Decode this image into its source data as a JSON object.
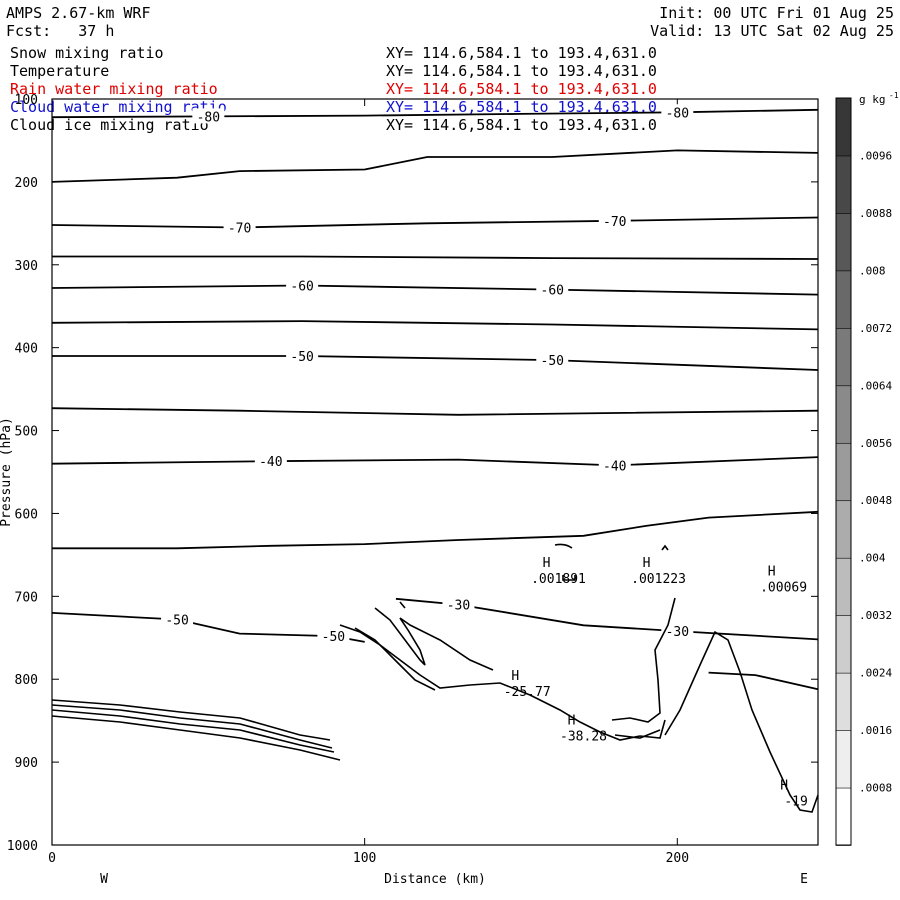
{
  "header": {
    "model": "AMPS 2.67-km WRF",
    "forecast": "Fcst:   37 h",
    "init": "Init: 00 UTC Fri 01 Aug 25",
    "valid": "Valid: 13 UTC Sat 02 Aug 25"
  },
  "fields": [
    {
      "name": "Snow mixing ratio",
      "range": "XY= 114.6,584.1 to 193.4,631.0",
      "color": "#000000"
    },
    {
      "name": "Temperature",
      "range": "XY= 114.6,584.1 to 193.4,631.0",
      "color": "#000000"
    },
    {
      "name": "Rain water mixing ratio",
      "range": "XY= 114.6,584.1 to 193.4,631.0",
      "color": "#e00000"
    },
    {
      "name": "Cloud water mixing ratio",
      "range": "XY= 114.6,584.1 to 193.4,631.0",
      "color": "#1010d0"
    },
    {
      "name": "Cloud ice mixing ratio",
      "range": "XY= 114.6,584.1 to 193.4,631.0",
      "color": "#000000"
    }
  ],
  "chart_data": {
    "type": "contour",
    "xlabel": "Distance (km)",
    "ylabel": "Pressure (hPa)",
    "xlim": [
      0,
      245
    ],
    "ylim": [
      1000,
      100
    ],
    "xticks": [
      0,
      100,
      200
    ],
    "yticks": [
      100,
      200,
      300,
      400,
      500,
      600,
      700,
      800,
      900,
      1000
    ],
    "x_endpoints": {
      "left": "W",
      "right": "E"
    },
    "colorbar": {
      "unit": "g kg",
      "unit_sup": "-1",
      "ticks": [
        ".0008",
        ".0016",
        ".0024",
        ".0032",
        ".004",
        ".0048",
        ".0056",
        ".0064",
        ".0072",
        ".008",
        ".0088",
        ".0096"
      ]
    },
    "isotherms": [
      {
        "level": -80,
        "points": [
          [
            0,
            122
          ],
          [
            50,
            121
          ],
          [
            100,
            120
          ],
          [
            150,
            118
          ],
          [
            200,
            116
          ],
          [
            245,
            113
          ]
        ]
      },
      {
        "level": null,
        "points": [
          [
            0,
            200
          ],
          [
            40,
            195
          ],
          [
            60,
            187
          ],
          [
            100,
            185
          ],
          [
            120,
            170
          ],
          [
            160,
            170
          ],
          [
            200,
            162
          ],
          [
            245,
            165
          ]
        ]
      },
      {
        "level": -70,
        "points": [
          [
            0,
            252
          ],
          [
            60,
            255
          ],
          [
            120,
            250
          ],
          [
            180,
            247
          ],
          [
            245,
            243
          ]
        ]
      },
      {
        "level": null,
        "points": [
          [
            0,
            290
          ],
          [
            80,
            290
          ],
          [
            160,
            292
          ],
          [
            245,
            293
          ]
        ]
      },
      {
        "level": -60,
        "points": [
          [
            0,
            328
          ],
          [
            80,
            325
          ],
          [
            160,
            330
          ],
          [
            245,
            336
          ]
        ]
      },
      {
        "level": null,
        "points": [
          [
            0,
            370
          ],
          [
            80,
            368
          ],
          [
            160,
            372
          ],
          [
            245,
            378
          ]
        ]
      },
      {
        "level": -50,
        "points": [
          [
            0,
            410
          ],
          [
            80,
            410
          ],
          [
            160,
            415
          ],
          [
            245,
            427
          ]
        ]
      },
      {
        "level": null,
        "points": [
          [
            0,
            473
          ],
          [
            60,
            476
          ],
          [
            130,
            481
          ],
          [
            245,
            476
          ]
        ]
      },
      {
        "level": -40,
        "points": [
          [
            0,
            540
          ],
          [
            70,
            537
          ],
          [
            130,
            535
          ],
          [
            180,
            542
          ],
          [
            245,
            532
          ]
        ]
      },
      {
        "level": null,
        "points": [
          [
            0,
            642
          ],
          [
            40,
            642
          ],
          [
            70,
            639
          ],
          [
            100,
            637
          ],
          [
            130,
            632
          ],
          [
            170,
            627
          ],
          [
            190,
            615
          ],
          [
            210,
            605
          ],
          [
            245,
            598
          ]
        ]
      },
      {
        "level": -30,
        "points": [
          [
            110,
            703
          ],
          [
            130,
            710
          ],
          [
            170,
            735
          ],
          [
            200,
            742
          ],
          [
            245,
            752
          ]
        ]
      },
      {
        "level": null,
        "points": [
          [
            210,
            792
          ],
          [
            225,
            795
          ],
          [
            245,
            812
          ]
        ]
      },
      {
        "level": -50,
        "points": [
          [
            0,
            720
          ],
          [
            40,
            728
          ],
          [
            60,
            745
          ],
          [
            90,
            748
          ],
          [
            100,
            755
          ]
        ]
      }
    ],
    "maxima": [
      {
        "label": "H",
        "value": ".001891",
        "x": 162,
        "p": 672
      },
      {
        "label": "H",
        "value": ".001223",
        "x": 194,
        "p": 672
      },
      {
        "label": "H",
        "value": ".00069",
        "x": 234,
        "p": 682
      },
      {
        "label": "H",
        "value": "-25.77",
        "x": 152,
        "p": 808
      },
      {
        "label": "H",
        "value": "-38.28",
        "x": 170,
        "p": 862
      },
      {
        "label": "H",
        "value": "-19",
        "x": 238,
        "p": 940
      }
    ]
  }
}
